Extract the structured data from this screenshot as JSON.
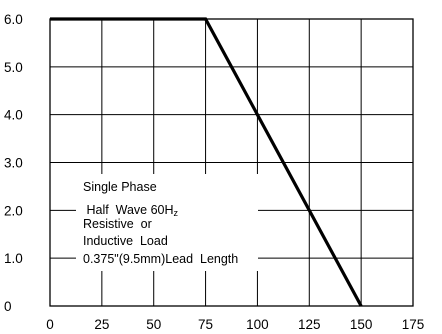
{
  "chart_data": {
    "type": "line",
    "x": [
      0,
      75,
      150
    ],
    "series": [
      {
        "values": [
          6.0,
          6.0,
          0
        ]
      }
    ],
    "xlim": [
      0,
      175
    ],
    "ylim": [
      0,
      6.0
    ],
    "x_ticks": [
      0,
      25,
      50,
      75,
      100,
      125,
      150,
      175
    ],
    "x_tick_labels": [
      "0",
      "25",
      "50",
      "75",
      "100",
      "125",
      "150",
      "175"
    ],
    "y_ticks": [
      0,
      1.0,
      2.0,
      3.0,
      4.0,
      5.0,
      6.0
    ],
    "y_tick_labels": [
      "0",
      "1.0",
      "2.0",
      "3.0",
      "4.0",
      "5.0",
      "6.0"
    ],
    "grid": true,
    "annotation": {
      "lines": [
        "Single Phase",
        " Half  Wave 60H",
        "Resistive  or",
        "Inductive  Load",
        "0.375\"(9.5mm)Lead  Length"
      ],
      "subscript": "z"
    },
    "colors": {
      "line": "#000000",
      "grid": "#000000",
      "background": "#ffffff"
    }
  }
}
